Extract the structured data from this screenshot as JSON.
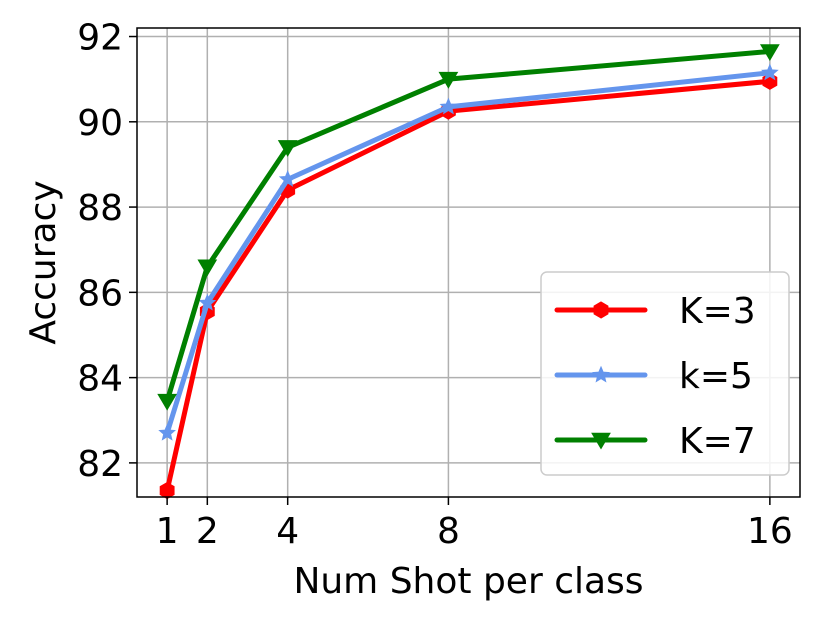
{
  "chart_data": {
    "type": "line",
    "xlabel": "Num Shot per class",
    "ylabel": "Accuracy",
    "x": [
      1,
      2,
      4,
      8,
      16
    ],
    "x_tick_labels": [
      "1",
      "2",
      "4",
      "8",
      "16"
    ],
    "ylim": [
      81.2,
      92.2
    ],
    "y_ticks": [
      82,
      84,
      86,
      88,
      90,
      92
    ],
    "y_tick_labels": [
      "82",
      "84",
      "86",
      "88",
      "90",
      "92"
    ],
    "grid": true,
    "legend_position": "lower-right",
    "series": [
      {
        "name": "K=3",
        "color": "#ff0000",
        "marker": "hexagon",
        "values": [
          81.35,
          85.55,
          88.4,
          90.25,
          90.95
        ]
      },
      {
        "name": "k=5",
        "color": "#6495ed",
        "marker": "star",
        "values": [
          82.7,
          85.75,
          88.65,
          90.35,
          91.15
        ]
      },
      {
        "name": "K=7",
        "color": "#008000",
        "marker": "triangle-down",
        "values": [
          83.45,
          86.6,
          89.4,
          91.0,
          91.65
        ]
      }
    ]
  }
}
